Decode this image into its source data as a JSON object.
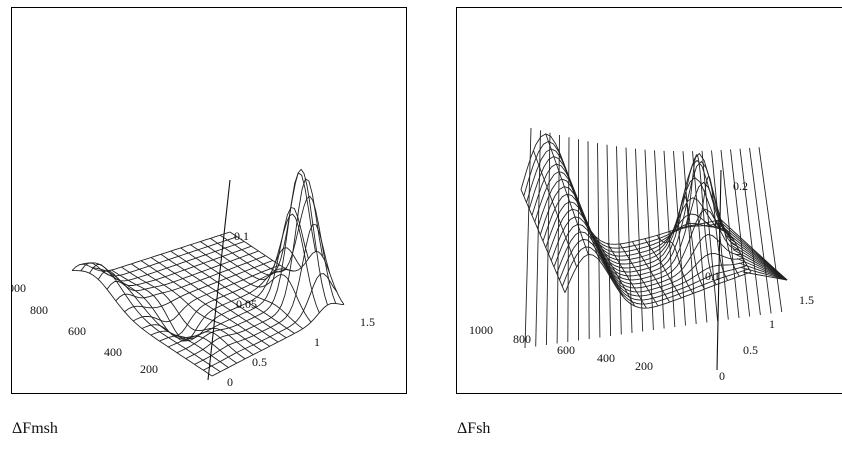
{
  "chart_data": [
    {
      "type": "surface3d",
      "caption": "ΔFmsh",
      "x_axis": {
        "ticks": [
          "000",
          "800",
          "600",
          "400",
          "200"
        ]
      },
      "y_axis": {
        "ticks": [
          "0",
          "0.5",
          "1",
          "1.5"
        ]
      },
      "z_axis": {
        "ticks": [
          "0.1",
          "0.05"
        ]
      },
      "grid": "wireframe",
      "stroke_color": "#222222"
    },
    {
      "type": "surface3d",
      "caption": "ΔFsh",
      "x_axis": {
        "ticks": [
          "1000",
          "800",
          "600",
          "400",
          "200"
        ]
      },
      "y_axis": {
        "ticks": [
          "0",
          "0.5",
          "1",
          "1.5"
        ]
      },
      "z_axis": {
        "ticks": [
          "0.2",
          "0.1"
        ]
      },
      "grid": "wireframe",
      "stroke_color": "#222222"
    }
  ]
}
